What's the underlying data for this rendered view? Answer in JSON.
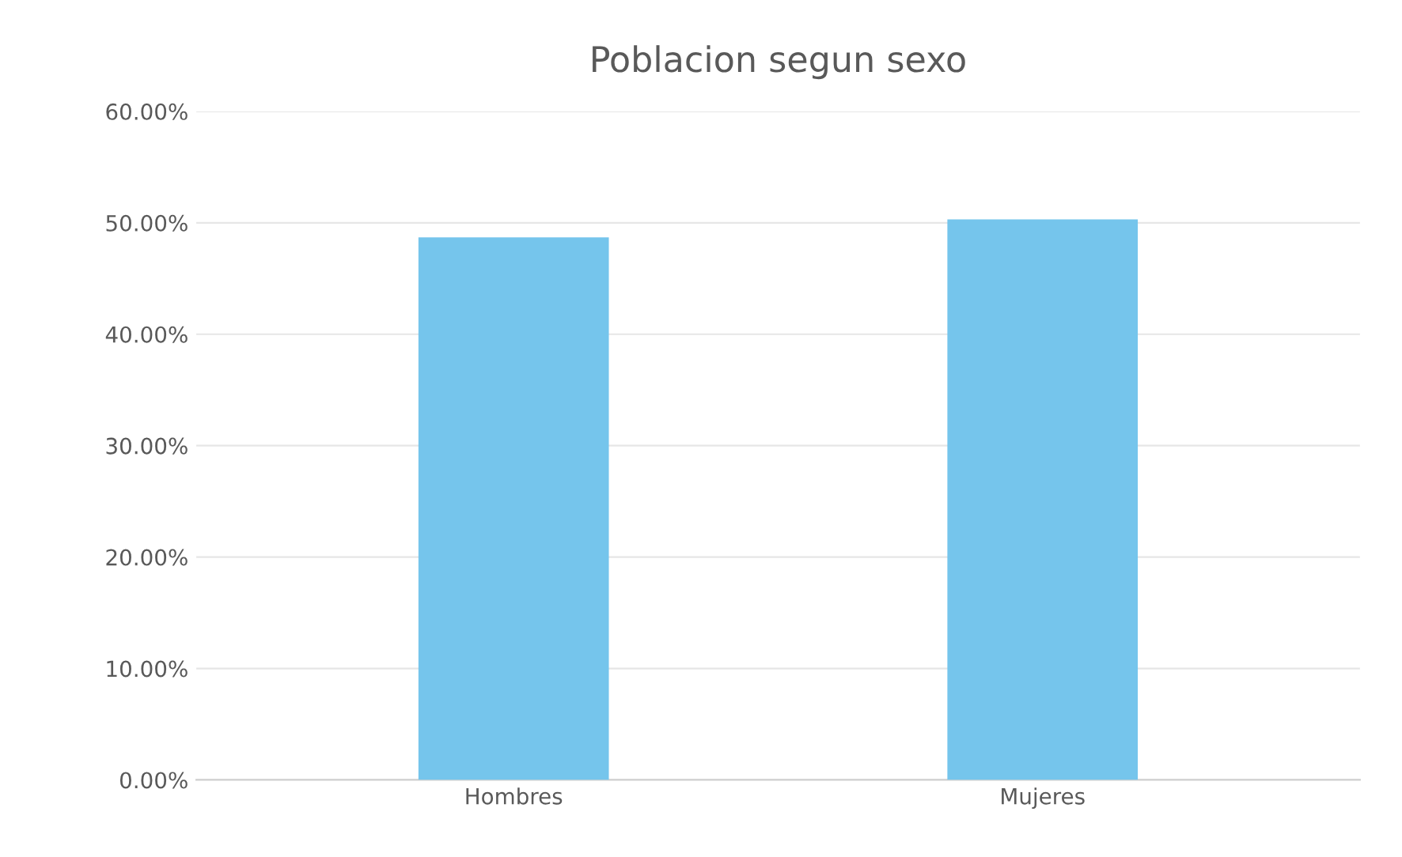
{
  "chart_data": {
    "type": "bar",
    "title": "Poblacion segun sexo",
    "categories": [
      "Hombres",
      "Mujeres"
    ],
    "values": [
      48.7,
      50.3
    ],
    "color": "#75c5ec",
    "ylim": [
      0,
      60
    ],
    "yticks": [
      {
        "value": 0,
        "label": "0.00%"
      },
      {
        "value": 10,
        "label": "10.00%"
      },
      {
        "value": 20,
        "label": "20.00%"
      },
      {
        "value": 30,
        "label": "30.00%"
      },
      {
        "value": 40,
        "label": "40.00%"
      },
      {
        "value": 50,
        "label": "50.00%"
      },
      {
        "value": 60,
        "label": "60.00%"
      }
    ],
    "grid": "y"
  }
}
